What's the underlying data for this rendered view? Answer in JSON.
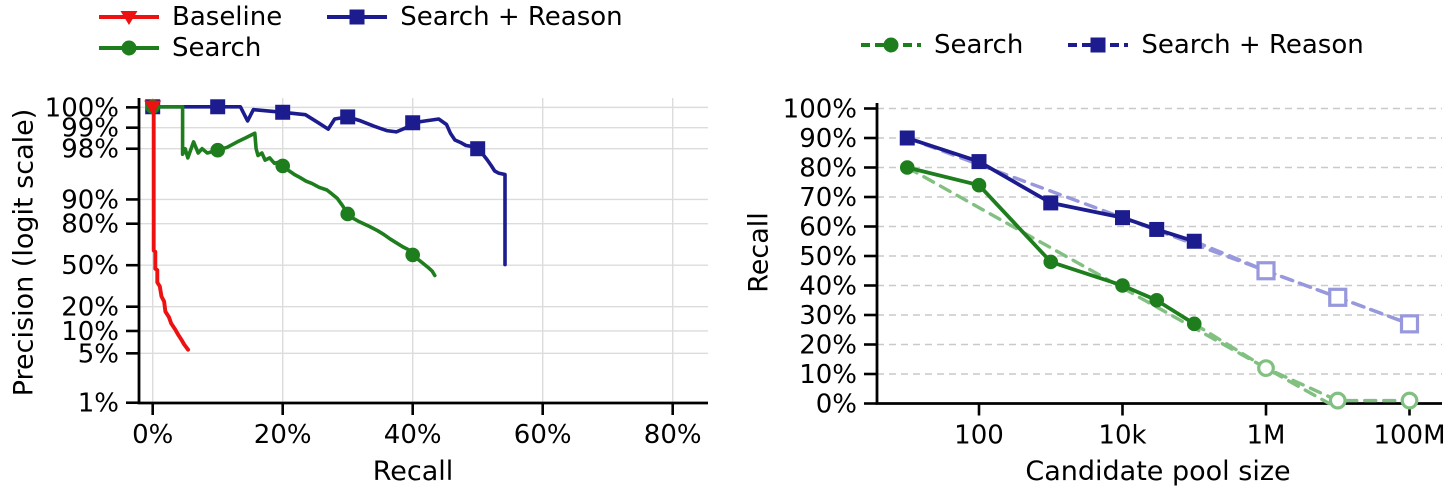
{
  "colors": {
    "red": "#ee1111",
    "green": "#1e7e1e",
    "blue": "#1c1c8f",
    "light_green": "#82c082",
    "light_blue": "#9898dc",
    "grid": "#dcdcdc",
    "grid_dashed": "#c9c9c9",
    "axis": "#000000"
  },
  "chart_data": [
    {
      "type": "line",
      "title": "",
      "xlabel": "Recall",
      "ylabel": "Precision (logit scale)",
      "y_scale": "logit",
      "xlim": [
        -2.1,
        85.4
      ],
      "grid": "solid",
      "legend_position": "top-left-two-rows",
      "x_ticks": [
        {
          "v": 0,
          "label": "0%"
        },
        {
          "v": 20,
          "label": "20%"
        },
        {
          "v": 40,
          "label": "40%"
        },
        {
          "v": 60,
          "label": "60%"
        },
        {
          "v": 80,
          "label": "80%"
        }
      ],
      "y_ticks": [
        {
          "v": 99.49,
          "label": "100%"
        },
        {
          "v": 99,
          "label": "99%"
        },
        {
          "v": 98,
          "label": "98%"
        },
        {
          "v": 90,
          "label": "90%"
        },
        {
          "v": 80,
          "label": "80%"
        },
        {
          "v": 50,
          "label": "50%"
        },
        {
          "v": 20,
          "label": "20%"
        },
        {
          "v": 10,
          "label": "10%"
        },
        {
          "v": 5,
          "label": "5%"
        },
        {
          "v": 1,
          "label": "1%"
        }
      ],
      "legend": {
        "rows": [
          [
            {
              "label": "Baseline",
              "color": "#ee1111",
              "marker": "triangle-down",
              "dash": null
            },
            {
              "label": "Search + Reason",
              "color": "#1c1c8f",
              "marker": "square",
              "dash": null
            }
          ],
          [
            {
              "label": "Search",
              "color": "#1e7e1e",
              "marker": "circle",
              "dash": null
            }
          ]
        ]
      },
      "series": [
        {
          "name": "Search + Reason",
          "color": "#1c1c8f",
          "marker": "square",
          "marker_points": [
            [
              0,
              99.5
            ],
            [
              10,
              99.5
            ],
            [
              20,
              99.4
            ],
            [
              30,
              99.3
            ],
            [
              40,
              99.15
            ],
            [
              50,
              98.0
            ]
          ],
          "points": [
            [
              0,
              99.5
            ],
            [
              10,
              99.5
            ],
            [
              13.5,
              99.5
            ],
            [
              14.6,
              99.2
            ],
            [
              15.5,
              99.45
            ],
            [
              20,
              99.4
            ],
            [
              23.5,
              99.35
            ],
            [
              25.5,
              99.15
            ],
            [
              27,
              98.95
            ],
            [
              28,
              99.25
            ],
            [
              30,
              99.3
            ],
            [
              32,
              99.2
            ],
            [
              34,
              99.05
            ],
            [
              36,
              98.9
            ],
            [
              37.5,
              98.85
            ],
            [
              39,
              99.0
            ],
            [
              40,
              99.15
            ],
            [
              42,
              99.2
            ],
            [
              44,
              99.25
            ],
            [
              45.2,
              99.1
            ],
            [
              45.8,
              98.8
            ],
            [
              46.5,
              98.5
            ],
            [
              47.5,
              98.35
            ],
            [
              48.2,
              98.2
            ],
            [
              49,
              98.15
            ],
            [
              50,
              98.0
            ],
            [
              50.8,
              97.6
            ],
            [
              51.5,
              97.1
            ],
            [
              52.1,
              96.5
            ],
            [
              52.6,
              95.9
            ],
            [
              53.2,
              95.6
            ],
            [
              54.2,
              95.4
            ],
            [
              54.2,
              50.5
            ]
          ]
        },
        {
          "name": "Search",
          "color": "#1e7e1e",
          "marker": "circle",
          "marker_points": [
            [
              0,
              99.5
            ],
            [
              10,
              97.9
            ],
            [
              20,
              96.5
            ],
            [
              30,
              84.7
            ],
            [
              40,
              58.5
            ]
          ],
          "points": [
            [
              0,
              99.5
            ],
            [
              4.6,
              99.5
            ],
            [
              4.6,
              97.6
            ],
            [
              5,
              98
            ],
            [
              5.4,
              97.3
            ],
            [
              6.3,
              98.4
            ],
            [
              7,
              97.7
            ],
            [
              7.6,
              98
            ],
            [
              8.4,
              97.7
            ],
            [
              10,
              97.9
            ],
            [
              11.5,
              98.1
            ],
            [
              13,
              98.4
            ],
            [
              14.3,
              98.6
            ],
            [
              15.7,
              98.8
            ],
            [
              15.9,
              98
            ],
            [
              16.2,
              97.5
            ],
            [
              16.8,
              97.7
            ],
            [
              17.3,
              97.1
            ],
            [
              18,
              97.3
            ],
            [
              18.7,
              96.8
            ],
            [
              19.4,
              96.9
            ],
            [
              20,
              96.5
            ],
            [
              21,
              95.9
            ],
            [
              21.8,
              95.4
            ],
            [
              22.7,
              94.9
            ],
            [
              23.6,
              94.3
            ],
            [
              24.5,
              93.9
            ],
            [
              25.6,
              93.1
            ],
            [
              26.8,
              92.5
            ],
            [
              27.6,
              91.5
            ],
            [
              28.4,
              90.3
            ],
            [
              29.2,
              88
            ],
            [
              30,
              84.7
            ],
            [
              30.8,
              82.8
            ],
            [
              31.8,
              81
            ],
            [
              33.4,
              78.4
            ],
            [
              34.6,
              76
            ],
            [
              35.6,
              73.5
            ],
            [
              36.5,
              70.7
            ],
            [
              37.6,
              67.5
            ],
            [
              38.6,
              64.5
            ],
            [
              39.3,
              62.8
            ],
            [
              40,
              58.5
            ],
            [
              40.8,
              55
            ],
            [
              41.6,
              51.5
            ],
            [
              42.4,
              48
            ],
            [
              43,
              45
            ],
            [
              43.4,
              41.5
            ]
          ]
        },
        {
          "name": "Baseline",
          "color": "#ee1111",
          "marker": "triangle-down",
          "marker_points": [
            [
              0,
              99.5
            ]
          ],
          "points": [
            [
              0,
              99.5
            ],
            [
              0.15,
              99.5
            ],
            [
              0.15,
              62
            ],
            [
              0.4,
              61
            ],
            [
              0.4,
              47
            ],
            [
              0.7,
              46
            ],
            [
              0.7,
              36
            ],
            [
              1.1,
              33
            ],
            [
              1.35,
              26
            ],
            [
              1.75,
              23
            ],
            [
              1.95,
              17.5
            ],
            [
              2.5,
              15
            ],
            [
              2.85,
              12.5
            ],
            [
              3.45,
              10.5
            ],
            [
              3.9,
              9
            ],
            [
              4.4,
              7.7
            ],
            [
              4.85,
              6.6
            ],
            [
              5.45,
              5.6
            ]
          ]
        }
      ]
    },
    {
      "type": "line",
      "title": "",
      "xlabel": "Candidate pool size",
      "ylabel": "Recall",
      "x_scale": "log10",
      "ylim": [
        0,
        100
      ],
      "grid": "dashed-horizontal",
      "legend_position": "top-center-one-row",
      "x_ticks": [
        {
          "v": 100,
          "label": "100"
        },
        {
          "v": 10000,
          "label": "10k"
        },
        {
          "v": 1000000,
          "label": "1M"
        },
        {
          "v": 100000000,
          "label": "100M"
        }
      ],
      "y_ticks": [
        {
          "v": 0,
          "label": "0%"
        },
        {
          "v": 10,
          "label": "10%"
        },
        {
          "v": 20,
          "label": "20%"
        },
        {
          "v": 30,
          "label": "30%"
        },
        {
          "v": 40,
          "label": "40%"
        },
        {
          "v": 50,
          "label": "50%"
        },
        {
          "v": 60,
          "label": "60%"
        },
        {
          "v": 70,
          "label": "70%"
        },
        {
          "v": 80,
          "label": "80%"
        },
        {
          "v": 90,
          "label": "90%"
        },
        {
          "v": 100,
          "label": "100%"
        }
      ],
      "legend": {
        "rows": [
          [
            {
              "label": "Search",
              "color": "#1e7e1e",
              "marker": "circle",
              "dash": "9 5"
            },
            {
              "label": "Search + Reason",
              "color": "#1c1c8f",
              "marker": "square",
              "dash": "9 5"
            }
          ]
        ]
      },
      "series": [
        {
          "name": "Search + Reason",
          "color": "#1c1c8f",
          "light_color": "#9898dc",
          "marker": "square",
          "pool_sizes": [
            10,
            100,
            1000,
            10000,
            30000,
            100000
          ],
          "recall": [
            90,
            82,
            68,
            63,
            59,
            55
          ],
          "extrapolated_pool_sizes": [
            1000000,
            10000000,
            100000000
          ],
          "extrapolated_recall": [
            45,
            36,
            27
          ],
          "trend": [
            [
              10,
              90
            ],
            [
              100000000,
              27
            ]
          ]
        },
        {
          "name": "Search",
          "color": "#1e7e1e",
          "light_color": "#82c082",
          "marker": "circle",
          "pool_sizes": [
            10,
            100,
            1000,
            10000,
            30000,
            100000
          ],
          "recall": [
            80,
            74,
            48,
            40,
            35,
            27
          ],
          "extrapolated_pool_sizes": [
            1000000,
            10000000,
            100000000
          ],
          "extrapolated_recall": [
            12,
            1,
            1
          ],
          "trend": [
            [
              10,
              80
            ],
            [
              7600000,
              0
            ]
          ]
        }
      ]
    }
  ]
}
